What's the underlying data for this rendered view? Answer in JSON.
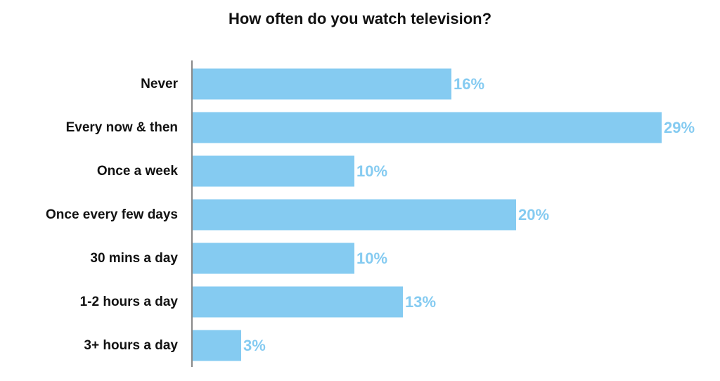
{
  "chart_data": {
    "type": "bar",
    "orientation": "horizontal",
    "title": "How often do you watch television?",
    "xlabel": "",
    "ylabel": "",
    "categories": [
      "Never",
      "Every now & then",
      "Once a week",
      "Once every few days",
      "30 mins a day",
      "1-2 hours a day",
      "3+ hours a day"
    ],
    "values": [
      16,
      29,
      10,
      20,
      10,
      13,
      3
    ],
    "value_labels": [
      "16%",
      "29%",
      "10%",
      "20%",
      "10%",
      "13%",
      "3%"
    ],
    "unit": "%",
    "xlim": [
      0,
      29
    ],
    "grid": false,
    "legend": "none",
    "colors": {
      "bar": "#85CBF1",
      "value_label": "#85CBF1",
      "axis": "#111111"
    }
  }
}
